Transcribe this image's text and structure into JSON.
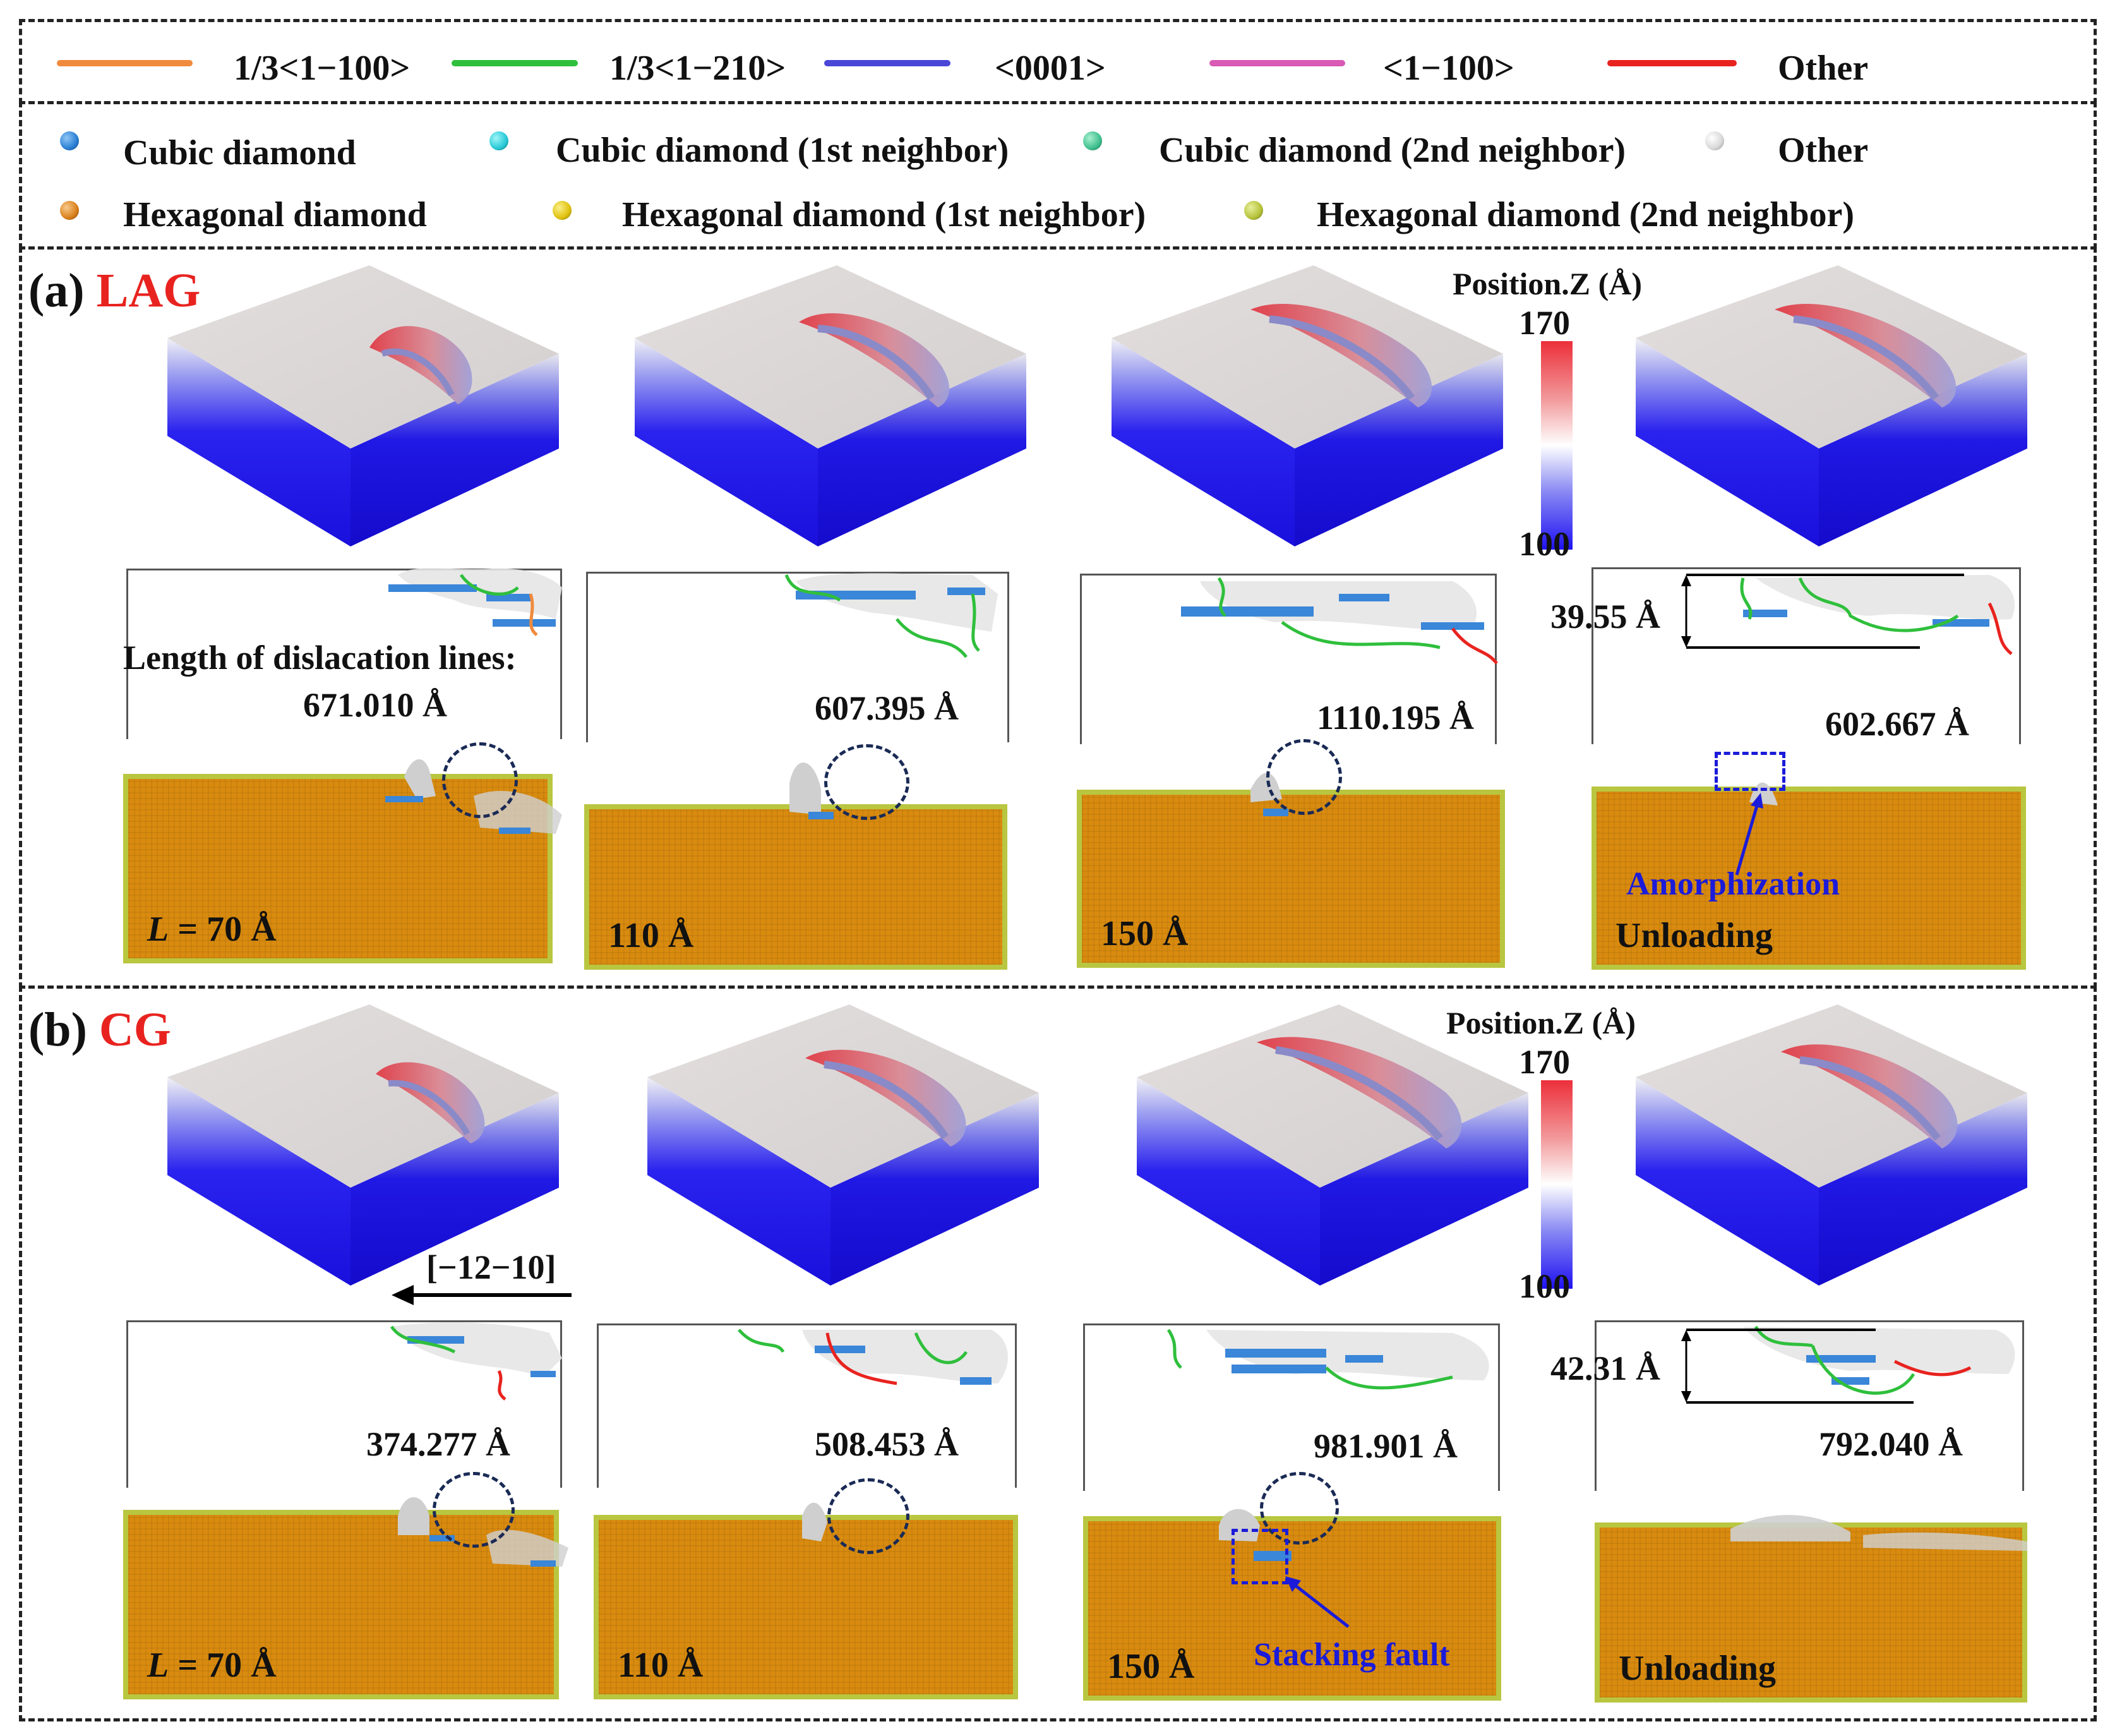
{
  "legend_lines": [
    {
      "label": "1/3<1−100>",
      "color": "#f08a3c"
    },
    {
      "label": "1/3<1−210>",
      "color": "#2fbf3c"
    },
    {
      "label": "<0001>",
      "color": "#4a46d8"
    },
    {
      "label": "<1−100>",
      "color": "#d85ab4"
    },
    {
      "label": "Other",
      "color": "#e8231f"
    }
  ],
  "legend_atoms": [
    {
      "label": "Cubic diamond",
      "color": "#2a7fd4"
    },
    {
      "label": "Cubic diamond (1st neighbor)",
      "color": "#26c9d6"
    },
    {
      "label": "Cubic diamond (2nd neighbor)",
      "color": "#3fbf8f"
    },
    {
      "label": "Other",
      "color": "#d8d8d8"
    },
    {
      "label": "Hexagonal diamond",
      "color": "#d9801a"
    },
    {
      "label": "Hexagonal diamond (1st neighbor)",
      "color": "#e0c20e"
    },
    {
      "label": "Hexagonal diamond (2nd neighbor)",
      "color": "#b6c23a"
    }
  ],
  "colorbar": {
    "title": "Position.Z (Å)",
    "max": "170",
    "min": "100"
  },
  "panels": [
    {
      "tag": "(a)",
      "name": "LAG",
      "dislocation_heading": "Length of dislacation lines:",
      "lengths": [
        "671.010 Å",
        "607.395 Å",
        "1110.195 Å",
        "602.667 Å"
      ],
      "depth": "39.55 Å",
      "stage_prefix": "L",
      "stages": [
        " = 70 Å",
        "110 Å",
        "150 Å",
        "Unloading"
      ],
      "callout": "Amorphization"
    },
    {
      "tag": "(b)",
      "name": "CG",
      "direction": "[−12−10]",
      "lengths": [
        "374.277 Å",
        "508.453 Å",
        "981.901 Å",
        "792.040 Å"
      ],
      "depth": "42.31 Å",
      "stage_prefix": "L",
      "stages": [
        " = 70 Å",
        "110 Å",
        "150 Å",
        "Unloading"
      ],
      "callout": "Stacking fault"
    }
  ]
}
